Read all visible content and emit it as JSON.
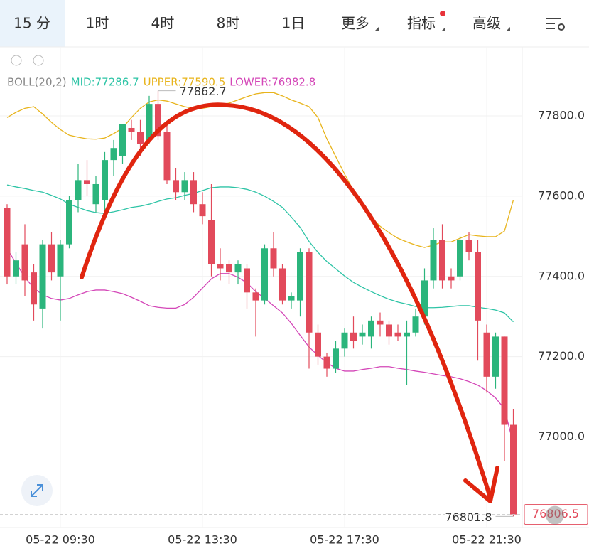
{
  "tabs": [
    "15 分",
    "1时",
    "4时",
    "8时",
    "1日",
    "更多",
    "指标",
    "高级"
  ],
  "chart_data": {
    "type": "candlestick",
    "indicator": "BOLL(20,2)",
    "categories": [
      null,
      null,
      null,
      null,
      null,
      null,
      "05-22 09:30",
      null,
      null,
      null,
      null,
      null,
      null,
      null,
      null,
      null,
      null,
      null,
      null,
      null,
      null,
      null,
      "05-22 13:30",
      null,
      null,
      null,
      null,
      null,
      null,
      null,
      null,
      null,
      null,
      null,
      null,
      null,
      null,
      null,
      "05-22 17:30",
      null,
      null,
      null,
      null,
      null,
      null,
      null,
      null,
      null,
      null,
      null,
      null,
      null,
      null,
      null,
      "05-22 21:30",
      null,
      null,
      null
    ],
    "open": [
      77570,
      77400,
      77480,
      77410,
      77320,
      77480,
      77400,
      77480,
      77590,
      77640,
      77580,
      77590,
      77690,
      77700,
      77770,
      77760,
      77740,
      77830,
      77760,
      77640,
      77610,
      77640,
      77580,
      77540,
      77430,
      77430,
      77410,
      77420,
      77360,
      77340,
      77470,
      77420,
      77340,
      77340,
      77460,
      77260,
      77200,
      77170,
      77220,
      77260,
      77250,
      77250,
      77290,
      77280,
      77260,
      77250,
      77260,
      77300,
      77390,
      77490,
      77400,
      77400,
      77490,
      77460,
      77260,
      77150,
      77250,
      77030
    ],
    "high": [
      77580,
      77460,
      77530,
      77430,
      77490,
      77510,
      77490,
      77600,
      77680,
      77690,
      77650,
      77710,
      77740,
      77780,
      77790,
      77790,
      77850,
      77862.7,
      77780,
      77670,
      77660,
      77660,
      77610,
      77630,
      77470,
      77440,
      77440,
      77430,
      77370,
      77480,
      77510,
      77430,
      77360,
      77470,
      77470,
      77280,
      77210,
      77240,
      77270,
      77300,
      77280,
      77300,
      77310,
      77290,
      77280,
      77290,
      77320,
      77420,
      77520,
      77530,
      77420,
      77500,
      77510,
      77490,
      77280,
      77260,
      77250,
      77070
    ],
    "low": [
      77380,
      77380,
      77350,
      77290,
      77270,
      77390,
      77290,
      77470,
      77560,
      77600,
      77560,
      77550,
      77650,
      77680,
      77740,
      77700,
      77730,
      77740,
      77630,
      77590,
      77590,
      77560,
      77530,
      77400,
      77390,
      77380,
      77380,
      77320,
      77250,
      77330,
      77400,
      77330,
      77320,
      77300,
      77170,
      77180,
      77150,
      77160,
      77200,
      77220,
      77230,
      77220,
      77250,
      77230,
      77240,
      77130,
      77250,
      77280,
      77370,
      77370,
      77370,
      77390,
      77440,
      77190,
      77110,
      77120,
      76940,
      76801.8
    ],
    "close": [
      77400,
      77440,
      77390,
      77330,
      77480,
      77410,
      77480,
      77590,
      77640,
      77630,
      77630,
      77690,
      77720,
      77780,
      77760,
      77730,
      77830,
      77750,
      77640,
      77610,
      77640,
      77580,
      77550,
      77430,
      77420,
      77410,
      77430,
      77360,
      77340,
      77470,
      77420,
      77340,
      77350,
      77460,
      77260,
      77200,
      77170,
      77220,
      77260,
      77240,
      77260,
      77290,
      77280,
      77250,
      77250,
      77260,
      77300,
      77390,
      77490,
      77390,
      77390,
      77490,
      77460,
      77290,
      77150,
      77250,
      77030,
      76806.5
    ],
    "up_color": "#2bb57c",
    "down_color": "#e24a5b",
    "series": [
      {
        "name": "MID:77286.7",
        "color": "#2ec4a6",
        "values": [
          77628,
          77623,
          77619,
          77614,
          77610,
          77602,
          77593,
          77580,
          77572,
          77564,
          77559,
          77557,
          77561,
          77566,
          77572,
          77575,
          77580,
          77587,
          77593,
          77596,
          77602,
          77607,
          77614,
          77621,
          77623,
          77623,
          77621,
          77617,
          77610,
          77600,
          77587,
          77572,
          77548,
          77522,
          77487,
          77460,
          77437,
          77419,
          77401,
          77385,
          77373,
          77362,
          77352,
          77343,
          77336,
          77331,
          77325,
          77322,
          77322,
          77323,
          77325,
          77327,
          77327,
          77323,
          77320,
          77316,
          77309,
          77286.7
        ]
      },
      {
        "name": "UPPER:77590.5",
        "color": "#e8b41c",
        "values": [
          77796,
          77809,
          77819,
          77823,
          77805,
          77784,
          77766,
          77752,
          77747,
          77743,
          77742,
          77745,
          77756,
          77770,
          77796,
          77819,
          77835,
          77840,
          77837,
          77830,
          77823,
          77819,
          77819,
          77823,
          77828,
          77832,
          77840,
          77848,
          77855,
          77858,
          77858,
          77850,
          77840,
          77832,
          77823,
          77796,
          77743,
          77699,
          77655,
          77614,
          77575,
          77548,
          77525,
          77509,
          77495,
          77486,
          77478,
          77472,
          77478,
          77486,
          77486,
          77495,
          77504,
          77501,
          77499,
          77499,
          77513,
          77590.5
        ]
      },
      {
        "name": "LOWER:76982.8",
        "color": "#d447b8",
        "values": [
          77469,
          77433,
          77398,
          77371,
          77354,
          77345,
          77341,
          77345,
          77354,
          77362,
          77366,
          77366,
          77362,
          77357,
          77348,
          77338,
          77327,
          77323,
          77321,
          77321,
          77330,
          77348,
          77371,
          77394,
          77407,
          77407,
          77398,
          77384,
          77362,
          77345,
          77327,
          77309,
          77283,
          77253,
          77224,
          77203,
          77185,
          77171,
          77164,
          77164,
          77168,
          77171,
          77175,
          77175,
          77171,
          77168,
          77164,
          77161,
          77157,
          77153,
          77150,
          77145,
          77138,
          77129,
          77115,
          77097,
          77070,
          76982.8
        ]
      }
    ],
    "ylim": [
      76774,
      77972
    ],
    "yticks": [
      {
        "value": 77000,
        "label": "77000.0"
      },
      {
        "value": 77200,
        "label": "77200.0"
      },
      {
        "value": 77400,
        "label": "77400.0"
      },
      {
        "value": 77600,
        "label": "77600.0"
      },
      {
        "value": 77800,
        "label": "77800.0"
      }
    ],
    "grid": true,
    "max_label": "77862.7",
    "min_label": "76801.8",
    "last_price": 76806.5,
    "last_price_label": "76806.5"
  }
}
